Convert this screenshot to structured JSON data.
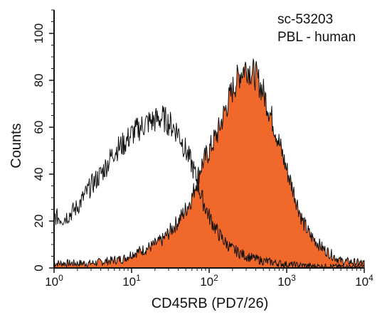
{
  "chart_data": {
    "type": "area",
    "title": "",
    "annotations": [
      "sc-53203",
      "PBL - human"
    ],
    "xlabel": "CD45RB (PD7/26)",
    "ylabel": "Counts",
    "x_scale": "log",
    "xlim": [
      1,
      10000
    ],
    "ylim": [
      0,
      110
    ],
    "x_ticks": [
      {
        "base": "10",
        "exp": "0"
      },
      {
        "base": "10",
        "exp": "1"
      },
      {
        "base": "10",
        "exp": "2"
      },
      {
        "base": "10",
        "exp": "3"
      },
      {
        "base": "10",
        "exp": "4"
      }
    ],
    "x_tick_values": [
      1,
      10,
      100,
      1000,
      10000
    ],
    "y_ticks": [
      "0",
      "20",
      "40",
      "60",
      "80",
      "100"
    ],
    "y_tick_values": [
      0,
      20,
      40,
      60,
      80,
      100
    ],
    "grid": false,
    "colors": {
      "filled": "#f0692a",
      "outline": "#111111",
      "axis": "#111111"
    },
    "series": [
      {
        "style": "outline",
        "x": [
          1,
          1.3,
          1.6,
          2,
          2.5,
          3,
          4,
          5,
          6,
          8,
          10,
          13,
          16,
          20,
          25,
          30,
          40,
          50,
          60,
          70,
          80,
          100,
          130,
          160,
          200,
          300,
          500,
          1000,
          2000,
          5000,
          10000
        ],
        "y": [
          22,
          21,
          23,
          26,
          31,
          35,
          40,
          45,
          50,
          53,
          57,
          60,
          62,
          63,
          64,
          62,
          58,
          50,
          44,
          37,
          30,
          22,
          15,
          11,
          8,
          5,
          3,
          1.5,
          0.8,
          0.5,
          0.5
        ]
      },
      {
        "style": "filled",
        "x": [
          1,
          2,
          3,
          5,
          8,
          10,
          15,
          20,
          25,
          30,
          40,
          50,
          60,
          70,
          80,
          100,
          130,
          160,
          200,
          250,
          300,
          400,
          500,
          700,
          1000,
          1300,
          1600,
          2000,
          3000,
          5000,
          10000
        ],
        "y": [
          2,
          2,
          2,
          3,
          4,
          6,
          8,
          10,
          12,
          15,
          20,
          25,
          30,
          38,
          44,
          50,
          58,
          67,
          76,
          83,
          86,
          82,
          75,
          60,
          42,
          30,
          20,
          14,
          8,
          3,
          2
        ]
      }
    ]
  }
}
